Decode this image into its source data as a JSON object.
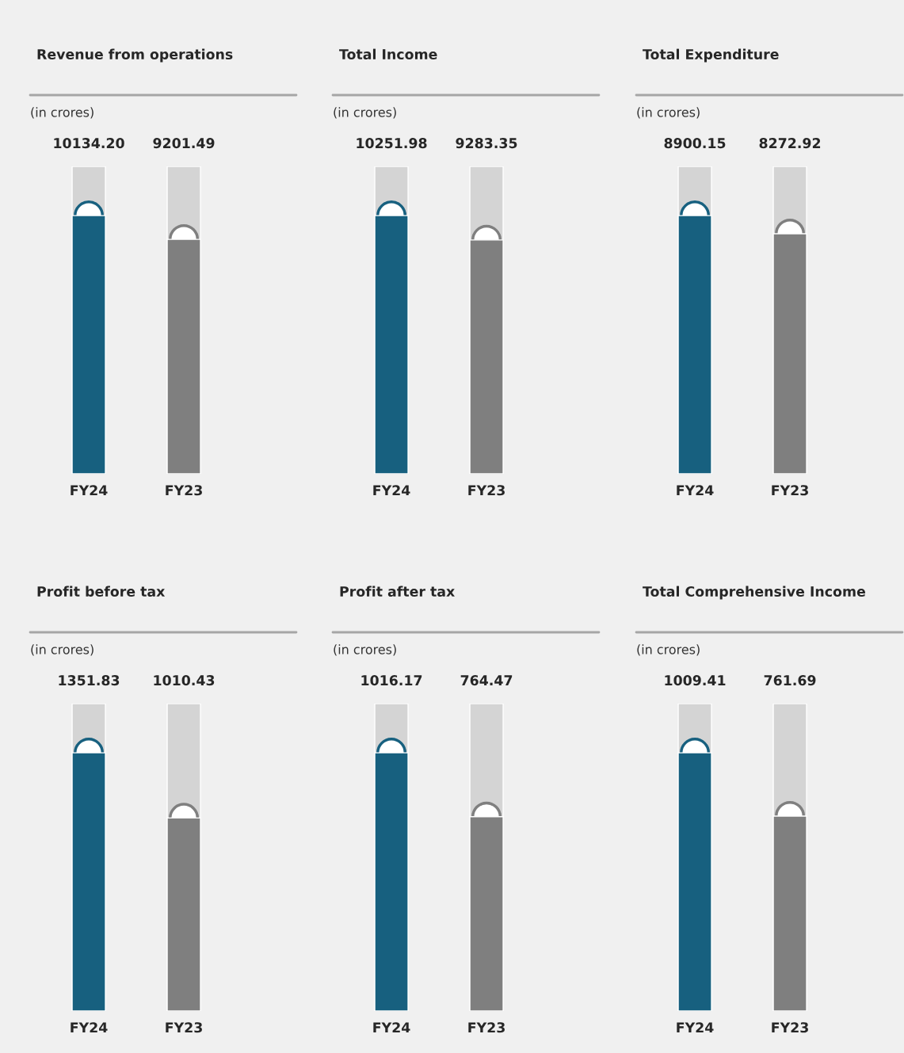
{
  "chart_data": [
    {
      "type": "bar",
      "title": "Revenue from operations",
      "subtitle": "(in crores)",
      "categories": [
        "FY24",
        "FY23"
      ],
      "values": [
        10134.2,
        9201.49
      ],
      "value_labels": [
        "10134.20",
        "9201.49"
      ],
      "colors": [
        "#17607f",
        "#7f7f7f"
      ]
    },
    {
      "type": "bar",
      "title": "Total Income",
      "subtitle": "(in crores)",
      "categories": [
        "FY24",
        "FY23"
      ],
      "values": [
        10251.98,
        9283.35
      ],
      "value_labels": [
        "10251.98",
        "9283.35"
      ],
      "colors": [
        "#17607f",
        "#7f7f7f"
      ]
    },
    {
      "type": "bar",
      "title": "Total Expenditure",
      "subtitle": "(in crores)",
      "categories": [
        "FY24",
        "FY23"
      ],
      "values": [
        8900.15,
        8272.92
      ],
      "value_labels": [
        "8900.15",
        "8272.92"
      ],
      "colors": [
        "#17607f",
        "#7f7f7f"
      ]
    },
    {
      "type": "bar",
      "title": "Profit before tax",
      "subtitle": "(in crores)",
      "categories": [
        "FY24",
        "FY23"
      ],
      "values": [
        1351.83,
        1010.43
      ],
      "value_labels": [
        "1351.83",
        "1010.43"
      ],
      "colors": [
        "#17607f",
        "#7f7f7f"
      ]
    },
    {
      "type": "bar",
      "title": "Profit after tax",
      "subtitle": "(in crores)",
      "categories": [
        "FY24",
        "FY23"
      ],
      "values": [
        1016.17,
        764.47
      ],
      "value_labels": [
        "1016.17",
        "764.47"
      ],
      "colors": [
        "#17607f",
        "#7f7f7f"
      ]
    },
    {
      "type": "bar",
      "title": "Total Comprehensive Income",
      "subtitle": "(in crores)",
      "categories": [
        "FY24",
        "FY23"
      ],
      "values": [
        1009.41,
        761.69
      ],
      "value_labels": [
        "1009.41",
        "761.69"
      ],
      "colors": [
        "#17607f",
        "#7f7f7f"
      ]
    }
  ]
}
